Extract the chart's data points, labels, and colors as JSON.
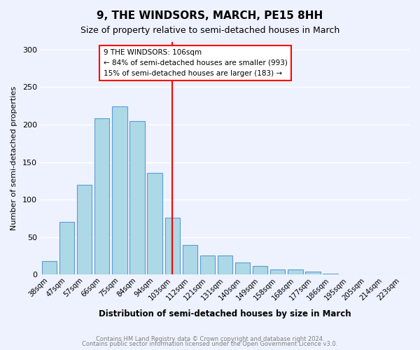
{
  "title": "9, THE WINDSORS, MARCH, PE15 8HH",
  "subtitle": "Size of property relative to semi-detached houses in March",
  "xlabel": "Distribution of semi-detached houses by size in March",
  "ylabel": "Number of semi-detached properties",
  "bar_values": [
    18,
    70,
    120,
    208,
    224,
    205,
    136,
    76,
    40,
    26,
    26,
    16,
    12,
    7,
    7,
    4,
    1,
    0,
    0,
    0,
    0
  ],
  "bar_labels": [
    "38sqm",
    "47sqm",
    "57sqm",
    "66sqm",
    "75sqm",
    "84sqm",
    "94sqm",
    "103sqm",
    "112sqm",
    "121sqm",
    "131sqm",
    "140sqm",
    "149sqm",
    "158sqm",
    "168sqm",
    "177sqm",
    "186sqm",
    "195sqm",
    "205sqm",
    "214sqm",
    "223sqm"
  ],
  "bar_color": "#add8e6",
  "bar_edge_color": "#5b9bd5",
  "ylim": [
    0,
    310
  ],
  "yticks": [
    0,
    50,
    100,
    150,
    200,
    250,
    300
  ],
  "red_line_index": 7,
  "annotation_title": "9 THE WINDSORS: 106sqm",
  "annotation_line1": "← 84% of semi-detached houses are smaller (993)",
  "annotation_line2": "15% of semi-detached houses are larger (183) →",
  "footer_line1": "Contains HM Land Registry data © Crown copyright and database right 2024.",
  "footer_line2": "Contains public sector information licensed under the Open Government Licence v3.0.",
  "background_color": "#eef2ff",
  "plot_background": "#eef2ff"
}
